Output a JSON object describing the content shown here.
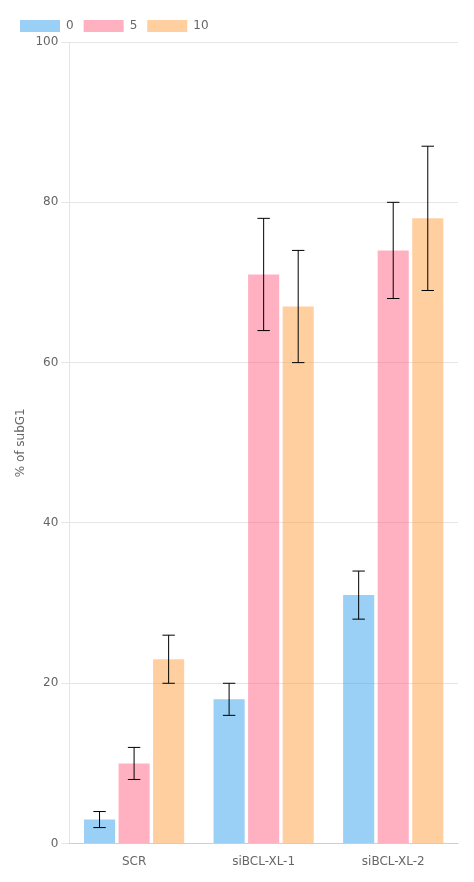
{
  "chart_data": {
    "type": "bar",
    "categories": [
      "SCR",
      "siBCL-XL-1",
      "siBCL-XL-2"
    ],
    "series": [
      {
        "name": "0",
        "values": [
          3,
          18,
          31
        ],
        "errors": [
          1,
          2,
          3
        ]
      },
      {
        "name": "5",
        "values": [
          10,
          71,
          74
        ],
        "errors": [
          2,
          7,
          6
        ]
      },
      {
        "name": "10",
        "values": [
          23,
          67,
          78
        ],
        "errors": [
          3,
          7,
          9
        ]
      }
    ],
    "ylabel": "% of subG1",
    "ylim": [
      0,
      100
    ],
    "yticks": [
      0,
      20,
      40,
      60,
      80,
      100
    ],
    "grid": true,
    "legend": "upper left"
  }
}
